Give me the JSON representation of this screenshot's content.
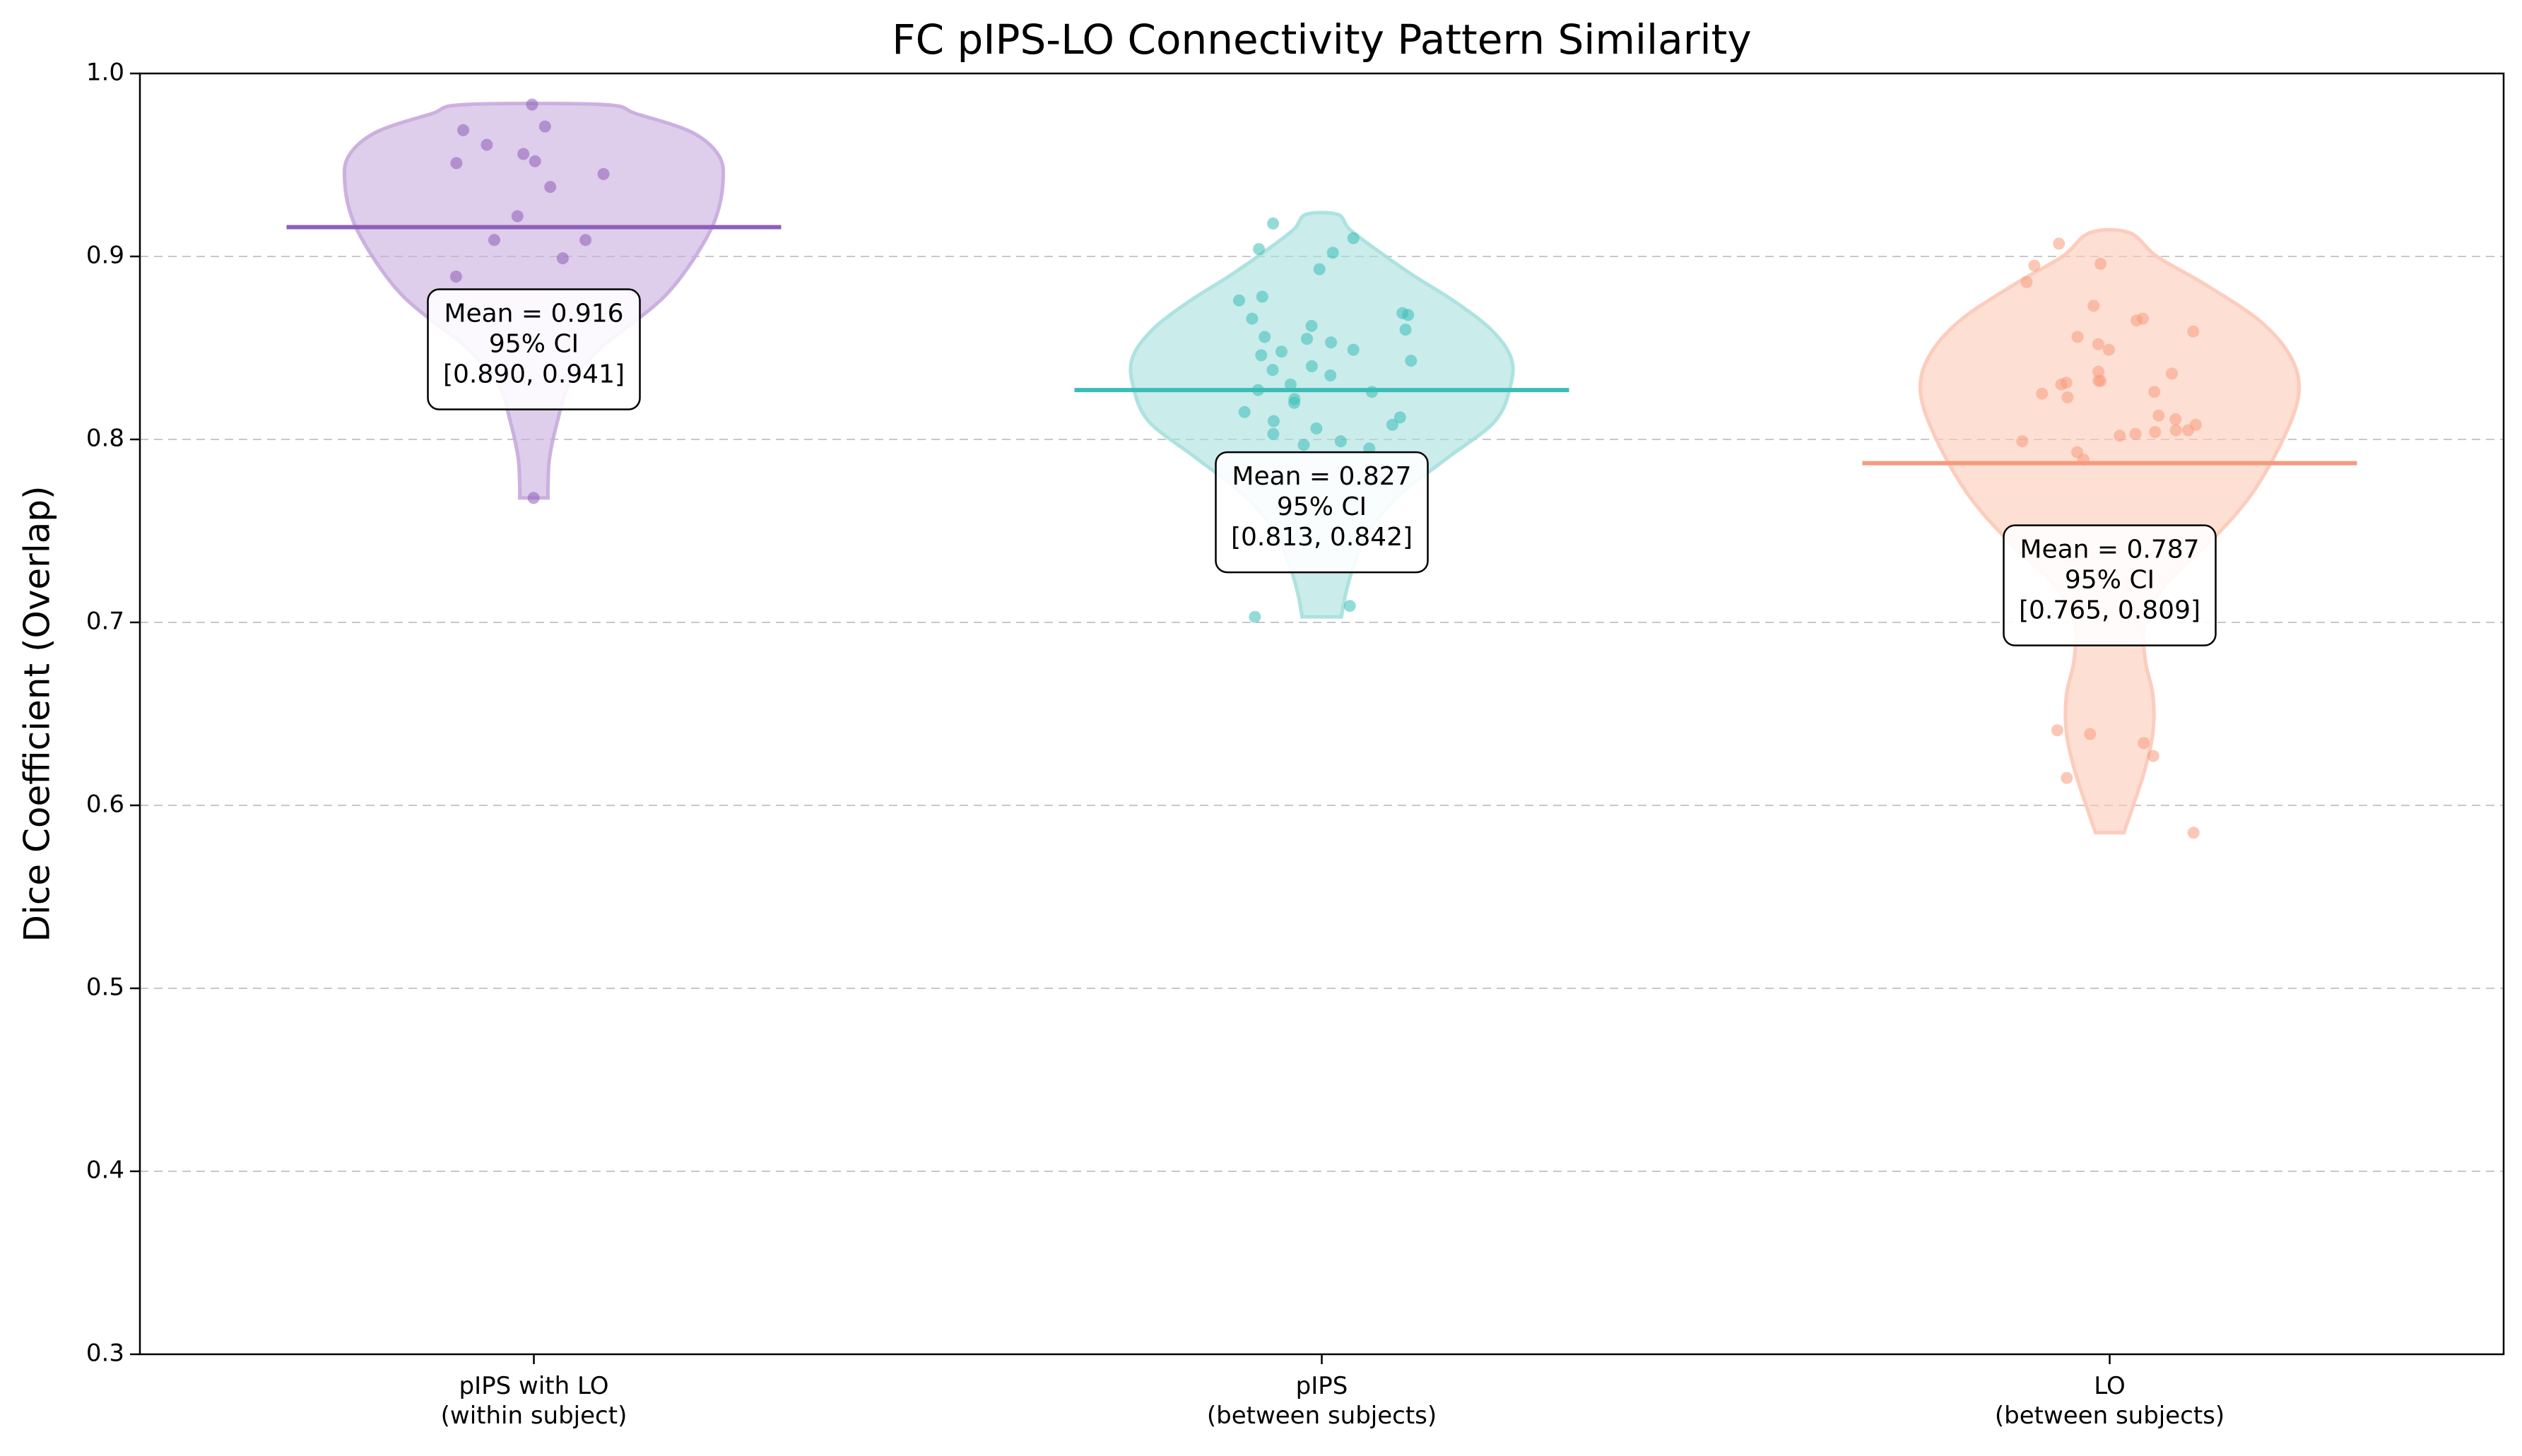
{
  "chart_data": {
    "type": "violin",
    "title": "FC pIPS-LO Connectivity Pattern Similarity",
    "xlabel": "",
    "ylabel": "Dice Coefficient (Overlap)",
    "ylim": [
      0.3,
      1.0
    ],
    "yticks": [
      "0.3",
      "0.4",
      "0.5",
      "0.6",
      "0.7",
      "0.8",
      "0.9",
      "1.0"
    ],
    "grid": "horizontal dashed",
    "groups": [
      {
        "label_line1": "pIPS with LO",
        "label_line2": "(within subject)",
        "color": "#8e5fb8",
        "fill": "#c8abdd",
        "mean": 0.916,
        "annotation": {
          "line1": "Mean = 0.916",
          "line2": "95% CI",
          "line3": "[0.890, 0.941]"
        },
        "violin_profile": [
          [
            0.768,
            0.018
          ],
          [
            0.775,
            0.018
          ],
          [
            0.79,
            0.02
          ],
          [
            0.81,
            0.03
          ],
          [
            0.83,
            0.045
          ],
          [
            0.85,
            0.085
          ],
          [
            0.865,
            0.13
          ],
          [
            0.88,
            0.17
          ],
          [
            0.9,
            0.205
          ],
          [
            0.92,
            0.23
          ],
          [
            0.94,
            0.24
          ],
          [
            0.955,
            0.235
          ],
          [
            0.968,
            0.2
          ],
          [
            0.978,
            0.13
          ],
          [
            0.983,
            0.088
          ]
        ],
        "points": [
          0.983,
          0.971,
          0.969,
          0.961,
          0.956,
          0.952,
          0.951,
          0.945,
          0.938,
          0.922,
          0.909,
          0.909,
          0.899,
          0.889,
          0.768
        ]
      },
      {
        "label_line1": "pIPS",
        "label_line2": "(between subjects)",
        "color": "#3bbdb6",
        "fill": "#a7e0dd",
        "mean": 0.827,
        "annotation": {
          "line1": "Mean = 0.827",
          "line2": "95% CI",
          "line3": "[0.813, 0.842]"
        },
        "violin_profile": [
          [
            0.703,
            0.025
          ],
          [
            0.715,
            0.03
          ],
          [
            0.73,
            0.04
          ],
          [
            0.75,
            0.06
          ],
          [
            0.77,
            0.1
          ],
          [
            0.79,
            0.16
          ],
          [
            0.81,
            0.22
          ],
          [
            0.83,
            0.24
          ],
          [
            0.845,
            0.24
          ],
          [
            0.86,
            0.215
          ],
          [
            0.875,
            0.17
          ],
          [
            0.89,
            0.115
          ],
          [
            0.905,
            0.065
          ],
          [
            0.915,
            0.035
          ],
          [
            0.923,
            0.02
          ]
        ],
        "points": [
          0.918,
          0.91,
          0.904,
          0.902,
          0.893,
          0.878,
          0.876,
          0.869,
          0.868,
          0.866,
          0.862,
          0.86,
          0.856,
          0.855,
          0.853,
          0.849,
          0.848,
          0.846,
          0.843,
          0.84,
          0.838,
          0.835,
          0.83,
          0.827,
          0.826,
          0.822,
          0.82,
          0.815,
          0.812,
          0.81,
          0.808,
          0.806,
          0.803,
          0.799,
          0.797,
          0.795,
          0.709,
          0.703
        ]
      },
      {
        "label_line1": "LO",
        "label_line2": "(between subjects)",
        "color": "#f79a7c",
        "fill": "#fcc9b8",
        "mean": 0.787,
        "annotation": {
          "line1": "Mean = 0.787",
          "line2": "95% CI",
          "line3": "[0.765, 0.809]"
        },
        "violin_profile": [
          [
            0.585,
            0.018
          ],
          [
            0.6,
            0.03
          ],
          [
            0.62,
            0.045
          ],
          [
            0.64,
            0.055
          ],
          [
            0.66,
            0.055
          ],
          [
            0.68,
            0.045
          ],
          [
            0.7,
            0.045
          ],
          [
            0.72,
            0.07
          ],
          [
            0.745,
            0.13
          ],
          [
            0.77,
            0.18
          ],
          [
            0.8,
            0.22
          ],
          [
            0.825,
            0.24
          ],
          [
            0.845,
            0.23
          ],
          [
            0.865,
            0.19
          ],
          [
            0.885,
            0.12
          ],
          [
            0.9,
            0.06
          ],
          [
            0.913,
            0.025
          ]
        ],
        "points": [
          0.907,
          0.896,
          0.895,
          0.886,
          0.873,
          0.866,
          0.865,
          0.859,
          0.856,
          0.852,
          0.849,
          0.837,
          0.836,
          0.832,
          0.832,
          0.831,
          0.83,
          0.826,
          0.825,
          0.823,
          0.813,
          0.811,
          0.808,
          0.805,
          0.805,
          0.804,
          0.803,
          0.802,
          0.799,
          0.793,
          0.789,
          0.641,
          0.639,
          0.634,
          0.627,
          0.615,
          0.585
        ]
      }
    ]
  }
}
